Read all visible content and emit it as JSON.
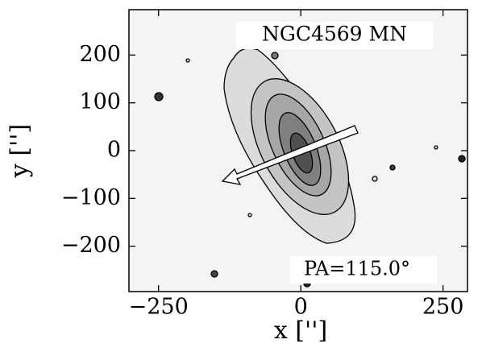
{
  "chart_data": {
    "type": "contour",
    "title": "NGC4569 MN",
    "annotation": "PA=115.0°",
    "xlabel": "x ['']",
    "ylabel": "y ['']",
    "xlim": [
      -302,
      293
    ],
    "ylim": [
      -295,
      295
    ],
    "xticks": [
      {
        "value": -250,
        "label": "−250"
      },
      0,
      250
    ],
    "yticks": [
      {
        "value": -200,
        "label": "−200"
      },
      {
        "value": -100,
        "label": "−100"
      },
      0,
      100,
      200
    ]
  }
}
